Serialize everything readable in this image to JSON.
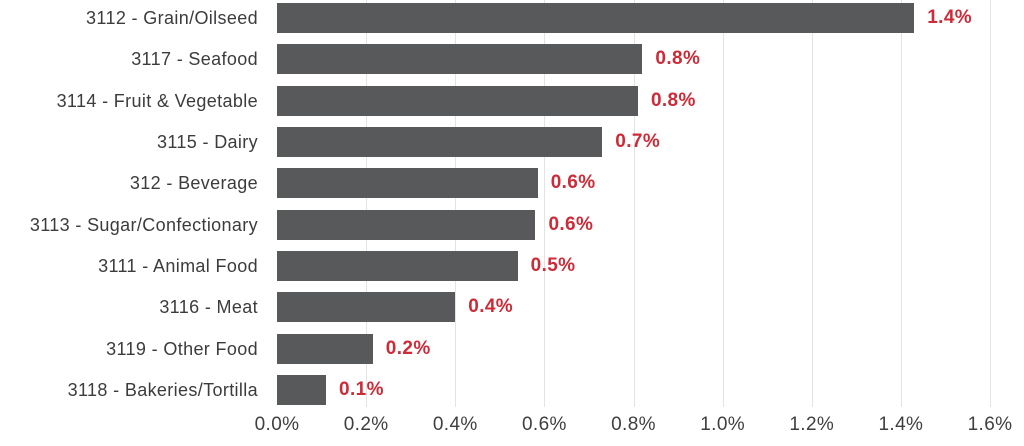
{
  "chart_data": {
    "type": "bar",
    "orientation": "horizontal",
    "title": "",
    "xlabel": "",
    "ylabel": "",
    "xlim": [
      0,
      1.6
    ],
    "x_ticks": [
      "0.0%",
      "0.2%",
      "0.4%",
      "0.6%",
      "0.8%",
      "1.0%",
      "1.2%",
      "1.4%",
      "1.6%"
    ],
    "grid": "vertical-only",
    "legend": "none",
    "categories": [
      "3112 - Grain/Oilseed",
      "3117 - Seafood",
      "3114 - Fruit & Vegetable",
      "3115 - Dairy",
      "312 - Beverage",
      "3113 - Sugar/Confectionary",
      "3111 - Animal Food",
      "3116 - Meat",
      "3119 - Other Food",
      "3118 - Bakeries/Tortilla"
    ],
    "values": [
      1.43,
      0.82,
      0.81,
      0.73,
      0.585,
      0.58,
      0.54,
      0.4,
      0.215,
      0.11
    ],
    "value_labels": [
      "1.4%",
      "0.8%",
      "0.8%",
      "0.7%",
      "0.6%",
      "0.6%",
      "0.5%",
      "0.4%",
      "0.2%",
      "0.1%"
    ]
  },
  "colors": {
    "background": "#ffffff",
    "bar": "#58595b",
    "value_label": "#cd2b38",
    "category_label": "#3c3c3f",
    "axis_label": "#3f3f41",
    "gridline": "#e3e3e6"
  }
}
